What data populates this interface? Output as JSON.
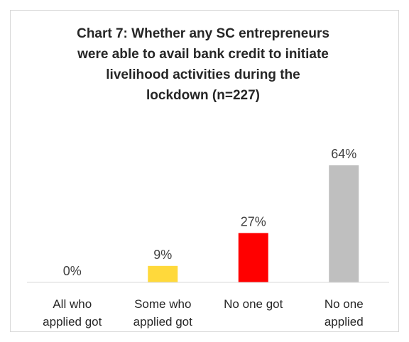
{
  "chart_data": {
    "type": "bar",
    "title": "Chart 7: Whether any SC entrepreneurs\nwere able to avail bank credit to initiate\nlivelihood activities during the\nlockdown (n=227)",
    "categories": [
      [
        "All who",
        "applied got"
      ],
      [
        "Some who",
        "applied got"
      ],
      [
        "No one got"
      ],
      [
        "No one",
        "applied"
      ]
    ],
    "values": [
      0,
      9,
      27,
      64
    ],
    "data_labels": [
      "0%",
      "9%",
      "27%",
      "64%"
    ],
    "colors": [
      "#FFD93B",
      "#FFD93B",
      "#FF0000",
      "#BFBFBF"
    ],
    "unit": "%",
    "ylim": [
      0,
      64
    ],
    "grid": false,
    "legend": "none",
    "xlabel": "",
    "ylabel": ""
  }
}
